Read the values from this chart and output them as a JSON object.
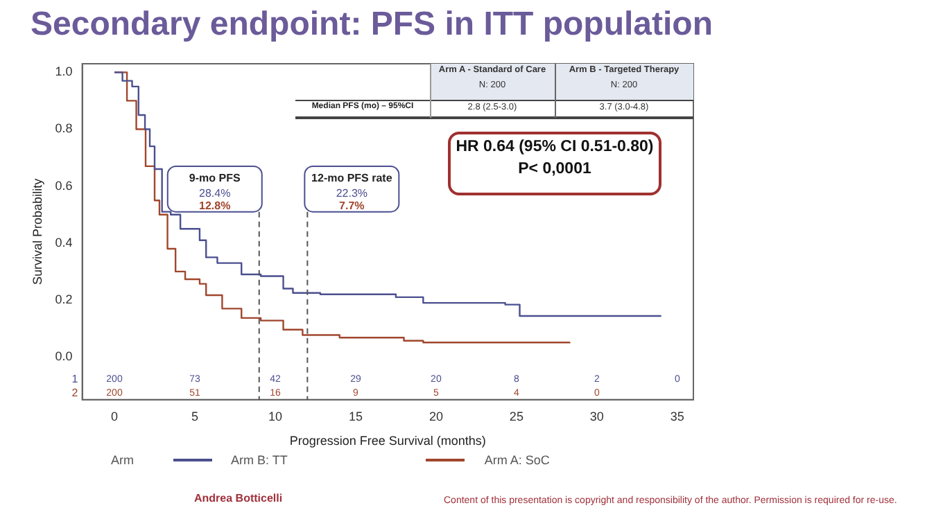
{
  "chart_data": {
    "type": "step",
    "title": "Secondary endpoint: PFS in ITT population",
    "xlabel": "Progression Free Survival (months)",
    "ylabel": "Survival Probability",
    "legend_title": "Arm",
    "xlim": [
      -2,
      36
    ],
    "xticks": [
      0,
      5,
      10,
      15,
      20,
      25,
      30,
      35
    ],
    "ylim": [
      -0.15,
      1.03
    ],
    "yticks": [
      {
        "value": 0,
        "label": "0.0"
      },
      {
        "value": 0.2,
        "label": "0.2"
      },
      {
        "value": 0.4,
        "label": "0.4"
      },
      {
        "value": 0.6,
        "label": "0.6"
      },
      {
        "value": 0.8,
        "label": "0.8"
      },
      {
        "value": 1,
        "label": "1.0"
      }
    ],
    "grid": false,
    "legend": "bottom",
    "series": [
      {
        "name": "Arm B: TT",
        "color": "#4b4f8f",
        "x": [
          0,
          0.5,
          1.1,
          1.5,
          1.9,
          2.2,
          2.5,
          2.96,
          3.5,
          4.1,
          5.3,
          5.7,
          6.4,
          7.9,
          9.1,
          10.5,
          11.1,
          12.8,
          17.5,
          19.2,
          24.3,
          25.2,
          34
        ],
        "values": [
          1.0,
          0.97,
          0.95,
          0.85,
          0.8,
          0.74,
          0.66,
          0.51,
          0.5,
          0.45,
          0.41,
          0.35,
          0.33,
          0.29,
          0.284,
          0.24,
          0.225,
          0.22,
          0.21,
          0.19,
          0.184,
          0.144,
          0.144
        ]
      },
      {
        "name": "Arm A: SoC",
        "color": "#a0462c",
        "x": [
          0,
          0.78,
          1.36,
          1.94,
          2.5,
          2.8,
          3.3,
          3.8,
          4.4,
          5.3,
          5.7,
          6.7,
          7.9,
          9.1,
          10.5,
          11.7,
          14,
          18,
          19.2,
          28.3
        ],
        "values": [
          1.0,
          0.9,
          0.8,
          0.67,
          0.55,
          0.5,
          0.38,
          0.3,
          0.273,
          0.257,
          0.217,
          0.17,
          0.137,
          0.128,
          0.096,
          0.077,
          0.068,
          0.057,
          0.051,
          0.048
        ]
      }
    ],
    "ref_lines": [
      {
        "axis": "x",
        "value": 9,
        "label": "9-mo PFS",
        "line_style": "dashed"
      },
      {
        "axis": "x",
        "value": 12,
        "label": "12-mo PFS rate",
        "line_style": "dashed"
      }
    ],
    "annotations": [
      "Arm A - Standard of Care",
      "N: 200",
      "Arm B - Targeted Therapy",
      "N: 200",
      "Median PFS (mo) – 95%CI",
      "2.8 (2.5-3.0)",
      "3.7 (3.0-4.8)",
      "HR 0.64 (95% CI 0.51-0.80)",
      "P< 0,0001",
      "1",
      "2",
      "Andrea Botticelli",
      "Content of this presentation is copyright and responsibility of the author. Permission is required for re-use.",
      "28.4%",
      "12.8%",
      "22.3%",
      "7.7%",
      "200",
      "73",
      "42",
      "29",
      "20",
      "8",
      "2",
      "0",
      "200",
      "51",
      "16",
      "9",
      "5",
      "4",
      "0"
    ]
  }
}
